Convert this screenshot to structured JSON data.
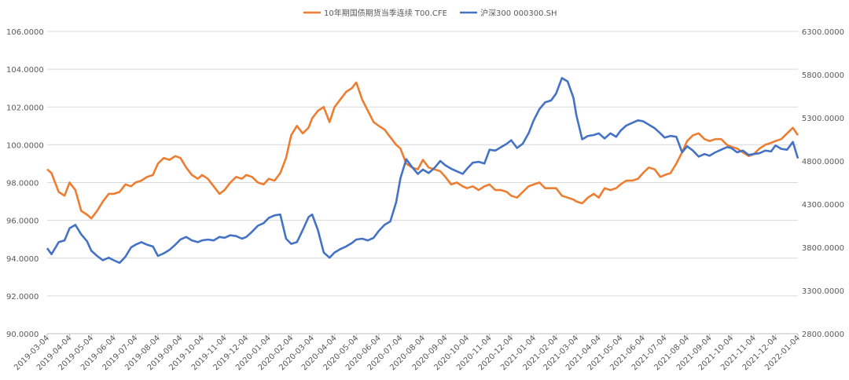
{
  "chart_data": {
    "type": "line",
    "title": "",
    "xlabel": "",
    "ylabel_left": "",
    "ylabel_right": "",
    "ylim_left": [
      90,
      106
    ],
    "ylim_right": [
      2800,
      6300
    ],
    "yticks_left": [
      "90.0000",
      "92.0000",
      "94.0000",
      "96.0000",
      "98.0000",
      "100.0000",
      "102.0000",
      "104.0000",
      "106.0000"
    ],
    "yticks_right": [
      "2800.0000",
      "3300.0000",
      "3800.0000",
      "4300.0000",
      "4800.0000",
      "5300.0000",
      "5800.0000",
      "6300.0000"
    ],
    "x_labels": [
      "2019-03-04",
      "2019-04-04",
      "2019-05-04",
      "2019-06-04",
      "2019-07-04",
      "2019-08-04",
      "2019-09-04",
      "2019-10-04",
      "2019-11-04",
      "2019-12-04",
      "2020-01-04",
      "2020-02-04",
      "2020-03-04",
      "2020-04-04",
      "2020-05-04",
      "2020-06-04",
      "2020-07-04",
      "2020-08-04",
      "2020-09-04",
      "2020-10-04",
      "2020-11-04",
      "2020-12-04",
      "2021-01-04",
      "2021-02-04",
      "2021-03-04",
      "2021-04-04",
      "2021-05-04",
      "2021-06-04",
      "2021-07-04",
      "2021-08-04",
      "2021-09-04",
      "2021-10-04",
      "2021-11-04",
      "2021-12-04",
      "2022-01-04"
    ],
    "grid": true,
    "legend_position": "top-center",
    "series": [
      {
        "name": "10年期国债期货当季连续 T00.CFE",
        "axis": "left",
        "color": "#ED7D31",
        "x": [
          "2019-03-04",
          "2019-03-10",
          "2019-03-20",
          "2019-03-28",
          "2019-04-04",
          "2019-04-12",
          "2019-04-20",
          "2019-04-28",
          "2019-05-04",
          "2019-05-12",
          "2019-05-20",
          "2019-05-28",
          "2019-06-04",
          "2019-06-12",
          "2019-06-20",
          "2019-06-28",
          "2019-07-04",
          "2019-07-12",
          "2019-07-20",
          "2019-07-28",
          "2019-08-04",
          "2019-08-12",
          "2019-08-20",
          "2019-08-28",
          "2019-09-04",
          "2019-09-12",
          "2019-09-20",
          "2019-09-28",
          "2019-10-04",
          "2019-10-12",
          "2019-10-20",
          "2019-10-28",
          "2019-11-04",
          "2019-11-12",
          "2019-11-20",
          "2019-11-28",
          "2019-12-04",
          "2019-12-12",
          "2019-12-20",
          "2019-12-28",
          "2020-01-04",
          "2020-01-12",
          "2020-01-20",
          "2020-01-28",
          "2020-02-04",
          "2020-02-12",
          "2020-02-20",
          "2020-02-28",
          "2020-03-04",
          "2020-03-12",
          "2020-03-20",
          "2020-03-28",
          "2020-04-04",
          "2020-04-12",
          "2020-04-20",
          "2020-04-28",
          "2020-05-04",
          "2020-05-12",
          "2020-05-20",
          "2020-05-28",
          "2020-06-04",
          "2020-06-12",
          "2020-06-20",
          "2020-06-28",
          "2020-07-04",
          "2020-07-12",
          "2020-07-20",
          "2020-07-28",
          "2020-08-04",
          "2020-08-12",
          "2020-08-20",
          "2020-08-28",
          "2020-09-04",
          "2020-09-12",
          "2020-09-20",
          "2020-09-28",
          "2020-10-04",
          "2020-10-12",
          "2020-10-20",
          "2020-10-28",
          "2020-11-04",
          "2020-11-12",
          "2020-11-20",
          "2020-11-28",
          "2020-12-04",
          "2020-12-12",
          "2020-12-20",
          "2020-12-28",
          "2021-01-04",
          "2021-01-12",
          "2021-01-20",
          "2021-01-28",
          "2021-02-04",
          "2021-02-12",
          "2021-02-20",
          "2021-02-28",
          "2021-03-04",
          "2021-03-12",
          "2021-03-20",
          "2021-03-28",
          "2021-04-04",
          "2021-04-12",
          "2021-04-20",
          "2021-04-28",
          "2021-05-04",
          "2021-05-12",
          "2021-05-20",
          "2021-05-28",
          "2021-06-04",
          "2021-06-12",
          "2021-06-20",
          "2021-06-28",
          "2021-07-04",
          "2021-07-12",
          "2021-07-20",
          "2021-07-28",
          "2021-08-04",
          "2021-08-12",
          "2021-08-20",
          "2021-08-28",
          "2021-09-04",
          "2021-09-12",
          "2021-09-20",
          "2021-09-28",
          "2021-10-04",
          "2021-10-12",
          "2021-10-20",
          "2021-10-28",
          "2021-11-04",
          "2021-11-12",
          "2021-11-20",
          "2021-11-28",
          "2021-12-04",
          "2021-12-12",
          "2021-12-20",
          "2021-12-28",
          "2022-01-04"
        ],
        "values": [
          98.7,
          98.5,
          97.5,
          97.3,
          98.0,
          97.6,
          96.5,
          96.3,
          96.1,
          96.5,
          97.0,
          97.4,
          97.4,
          97.5,
          97.9,
          97.8,
          98.0,
          98.1,
          98.3,
          98.4,
          99.0,
          99.3,
          99.2,
          99.4,
          99.3,
          98.8,
          98.4,
          98.2,
          98.4,
          98.2,
          97.8,
          97.4,
          97.6,
          98.0,
          98.3,
          98.2,
          98.4,
          98.3,
          98.0,
          97.9,
          98.2,
          98.1,
          98.5,
          99.3,
          100.5,
          101.0,
          100.6,
          100.9,
          101.4,
          101.8,
          102.0,
          101.2,
          102.0,
          102.4,
          102.8,
          103.0,
          103.3,
          102.4,
          101.8,
          101.2,
          101.0,
          100.8,
          100.4,
          100.0,
          99.8,
          99.0,
          98.8,
          98.7,
          99.2,
          98.8,
          98.7,
          98.6,
          98.3,
          97.9,
          98.0,
          97.8,
          97.7,
          97.8,
          97.6,
          97.8,
          97.9,
          97.6,
          97.6,
          97.5,
          97.3,
          97.2,
          97.5,
          97.8,
          97.9,
          98.0,
          97.7,
          97.7,
          97.7,
          97.3,
          97.2,
          97.1,
          97.0,
          96.9,
          97.2,
          97.4,
          97.2,
          97.7,
          97.6,
          97.7,
          97.9,
          98.1,
          98.1,
          98.2,
          98.5,
          98.8,
          98.7,
          98.3,
          98.4,
          98.5,
          99.0,
          99.6,
          100.2,
          100.5,
          100.6,
          100.3,
          100.2,
          100.3,
          100.3,
          100.0,
          99.9,
          99.8,
          99.6,
          99.4,
          99.5,
          99.8,
          100.0,
          100.1,
          100.2,
          100.3,
          100.6,
          100.9,
          100.5
        ]
      },
      {
        "name": "沪深300 000300.SH",
        "axis": "right",
        "color": "#4472C4",
        "x": [
          "2019-03-04",
          "2019-03-10",
          "2019-03-20",
          "2019-03-28",
          "2019-04-04",
          "2019-04-12",
          "2019-04-20",
          "2019-04-28",
          "2019-05-04",
          "2019-05-12",
          "2019-05-20",
          "2019-05-28",
          "2019-06-04",
          "2019-06-12",
          "2019-06-20",
          "2019-06-28",
          "2019-07-04",
          "2019-07-12",
          "2019-07-20",
          "2019-07-28",
          "2019-08-04",
          "2019-08-12",
          "2019-08-20",
          "2019-08-28",
          "2019-09-04",
          "2019-09-12",
          "2019-09-20",
          "2019-09-28",
          "2019-10-04",
          "2019-10-12",
          "2019-10-20",
          "2019-10-28",
          "2019-11-04",
          "2019-11-12",
          "2019-11-20",
          "2019-11-28",
          "2019-12-04",
          "2019-12-12",
          "2019-12-20",
          "2019-12-28",
          "2020-01-04",
          "2020-01-12",
          "2020-01-20",
          "2020-01-28",
          "2020-02-04",
          "2020-02-12",
          "2020-02-20",
          "2020-02-28",
          "2020-03-04",
          "2020-03-12",
          "2020-03-20",
          "2020-03-28",
          "2020-04-04",
          "2020-04-12",
          "2020-04-20",
          "2020-04-28",
          "2020-05-04",
          "2020-05-12",
          "2020-05-20",
          "2020-05-28",
          "2020-06-04",
          "2020-06-12",
          "2020-06-20",
          "2020-06-28",
          "2020-07-04",
          "2020-07-12",
          "2020-07-20",
          "2020-07-28",
          "2020-08-04",
          "2020-08-12",
          "2020-08-20",
          "2020-08-28",
          "2020-09-04",
          "2020-09-12",
          "2020-09-20",
          "2020-09-28",
          "2020-10-04",
          "2020-10-12",
          "2020-10-20",
          "2020-10-28",
          "2020-11-04",
          "2020-11-12",
          "2020-11-20",
          "2020-11-28",
          "2020-12-04",
          "2020-12-12",
          "2020-12-20",
          "2020-12-28",
          "2021-01-04",
          "2021-01-12",
          "2021-01-20",
          "2021-01-28",
          "2021-02-04",
          "2021-02-12",
          "2021-02-20",
          "2021-02-28",
          "2021-03-04",
          "2021-03-12",
          "2021-03-20",
          "2021-03-28",
          "2021-04-04",
          "2021-04-12",
          "2021-04-20",
          "2021-04-28",
          "2021-05-04",
          "2021-05-12",
          "2021-05-20",
          "2021-05-28",
          "2021-06-04",
          "2021-06-12",
          "2021-06-20",
          "2021-06-28",
          "2021-07-04",
          "2021-07-12",
          "2021-07-20",
          "2021-07-28",
          "2021-08-04",
          "2021-08-12",
          "2021-08-20",
          "2021-08-28",
          "2021-09-04",
          "2021-09-12",
          "2021-09-20",
          "2021-09-28",
          "2021-10-04",
          "2021-10-12",
          "2021-10-20",
          "2021-10-28",
          "2021-11-04",
          "2021-11-12",
          "2021-11-20",
          "2021-11-28",
          "2021-12-04",
          "2021-12-12",
          "2021-12-20",
          "2021-12-28",
          "2022-01-04"
        ],
        "values": [
          3790,
          3720,
          3860,
          3880,
          4020,
          4060,
          3950,
          3870,
          3760,
          3700,
          3650,
          3680,
          3650,
          3620,
          3690,
          3800,
          3830,
          3860,
          3830,
          3810,
          3700,
          3730,
          3770,
          3830,
          3890,
          3920,
          3880,
          3860,
          3880,
          3890,
          3880,
          3920,
          3910,
          3940,
          3930,
          3900,
          3920,
          3980,
          4050,
          4080,
          4140,
          4170,
          4180,
          3900,
          3840,
          3860,
          4000,
          4150,
          4180,
          4000,
          3740,
          3680,
          3740,
          3780,
          3810,
          3850,
          3890,
          3900,
          3880,
          3910,
          3990,
          4060,
          4100,
          4320,
          4600,
          4820,
          4730,
          4650,
          4700,
          4660,
          4720,
          4800,
          4750,
          4710,
          4680,
          4650,
          4710,
          4780,
          4790,
          4770,
          4930,
          4920,
          4960,
          5000,
          5040,
          4950,
          5000,
          5120,
          5270,
          5400,
          5480,
          5500,
          5580,
          5760,
          5720,
          5530,
          5330,
          5050,
          5090,
          5100,
          5120,
          5060,
          5120,
          5080,
          5150,
          5210,
          5240,
          5270,
          5260,
          5220,
          5180,
          5120,
          5070,
          5090,
          5080,
          4900,
          4970,
          4920,
          4850,
          4880,
          4860,
          4900,
          4930,
          4960,
          4950,
          4900,
          4920,
          4870,
          4880,
          4890,
          4920,
          4910,
          4980,
          4940,
          4930,
          5020,
          4830
        ]
      }
    ]
  }
}
